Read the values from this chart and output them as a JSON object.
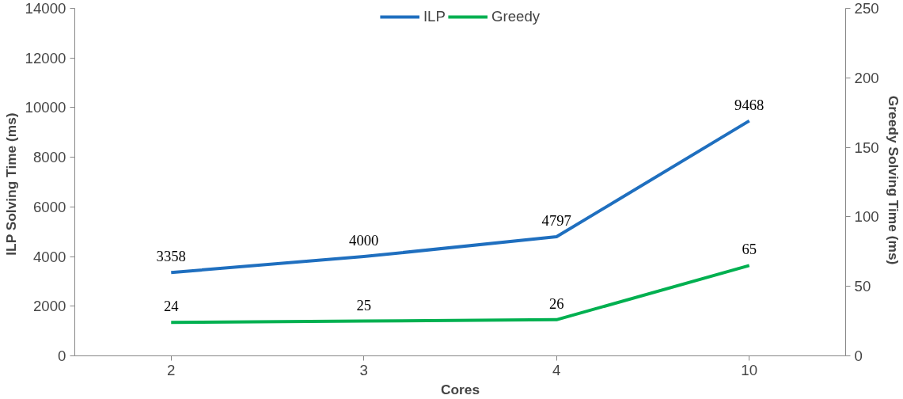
{
  "chart_data": {
    "type": "line",
    "xlabel": "Cores",
    "ylabel": "ILP  Solving Time (ms)",
    "y2label": "Greedy  Solving Time (ms)",
    "categories": [
      "2",
      "3",
      "4",
      "10"
    ],
    "series": [
      {
        "name": "ILP",
        "color": "#1f6fbf",
        "values": [
          3358,
          4000,
          4797,
          9468
        ]
      },
      {
        "name": "Greedy",
        "color": "#00b050",
        "values": [
          24,
          25,
          26,
          65
        ],
        "axis": "y2"
      }
    ],
    "ylim": [
      0,
      14000
    ],
    "yticks": [
      0,
      2000,
      4000,
      6000,
      8000,
      10000,
      12000,
      14000
    ],
    "y2lim": [
      0,
      250
    ],
    "y2ticks": [
      0,
      50,
      100,
      150,
      200,
      250
    ],
    "data_labels": true,
    "legend": "top",
    "grid": false,
    "marker": "none",
    "line_style": "solid"
  }
}
